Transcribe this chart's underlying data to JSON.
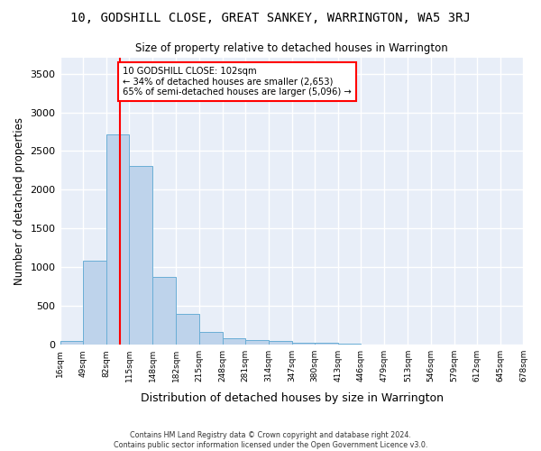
{
  "title": "10, GODSHILL CLOSE, GREAT SANKEY, WARRINGTON, WA5 3RJ",
  "subtitle": "Size of property relative to detached houses in Warrington",
  "xlabel": "Distribution of detached houses by size in Warrington",
  "ylabel": "Number of detached properties",
  "footer_line1": "Contains HM Land Registry data © Crown copyright and database right 2024.",
  "footer_line2": "Contains public sector information licensed under the Open Government Licence v3.0.",
  "annotation_line1": "10 GODSHILL CLOSE: 102sqm",
  "annotation_line2": "← 34% of detached houses are smaller (2,653)",
  "annotation_line3": "65% of semi-detached houses are larger (5,096) →",
  "bar_left_edges": [
    16,
    49,
    82,
    115,
    148,
    182,
    215,
    248,
    281,
    314,
    347,
    380,
    413,
    446,
    479,
    513,
    546,
    579,
    612,
    645
  ],
  "bar_widths": [
    33,
    33,
    33,
    33,
    34,
    33,
    33,
    33,
    33,
    33,
    33,
    33,
    33,
    33,
    33,
    33,
    33,
    33,
    33,
    33
  ],
  "bar_heights": [
    50,
    1080,
    2720,
    2310,
    870,
    400,
    160,
    85,
    55,
    45,
    30,
    20,
    10,
    5,
    3,
    2,
    1,
    1,
    0,
    0
  ],
  "bar_color": "#bed3eb",
  "bar_edgecolor": "#6aaed6",
  "background_color": "#e8eef8",
  "gridcolor": "#ffffff",
  "fig_background": "#ffffff",
  "redline_x": 102,
  "ylim": [
    0,
    3700
  ],
  "xlim": [
    16,
    678
  ],
  "yticks": [
    0,
    500,
    1000,
    1500,
    2000,
    2500,
    3000,
    3500
  ],
  "xtick_labels": [
    "16sqm",
    "49sqm",
    "82sqm",
    "115sqm",
    "148sqm",
    "182sqm",
    "215sqm",
    "248sqm",
    "281sqm",
    "314sqm",
    "347sqm",
    "380sqm",
    "413sqm",
    "446sqm",
    "479sqm",
    "513sqm",
    "546sqm",
    "579sqm",
    "612sqm",
    "645sqm",
    "678sqm"
  ],
  "xtick_positions": [
    16,
    49,
    82,
    115,
    148,
    182,
    215,
    248,
    281,
    314,
    347,
    380,
    413,
    446,
    479,
    513,
    546,
    579,
    612,
    645,
    678
  ]
}
